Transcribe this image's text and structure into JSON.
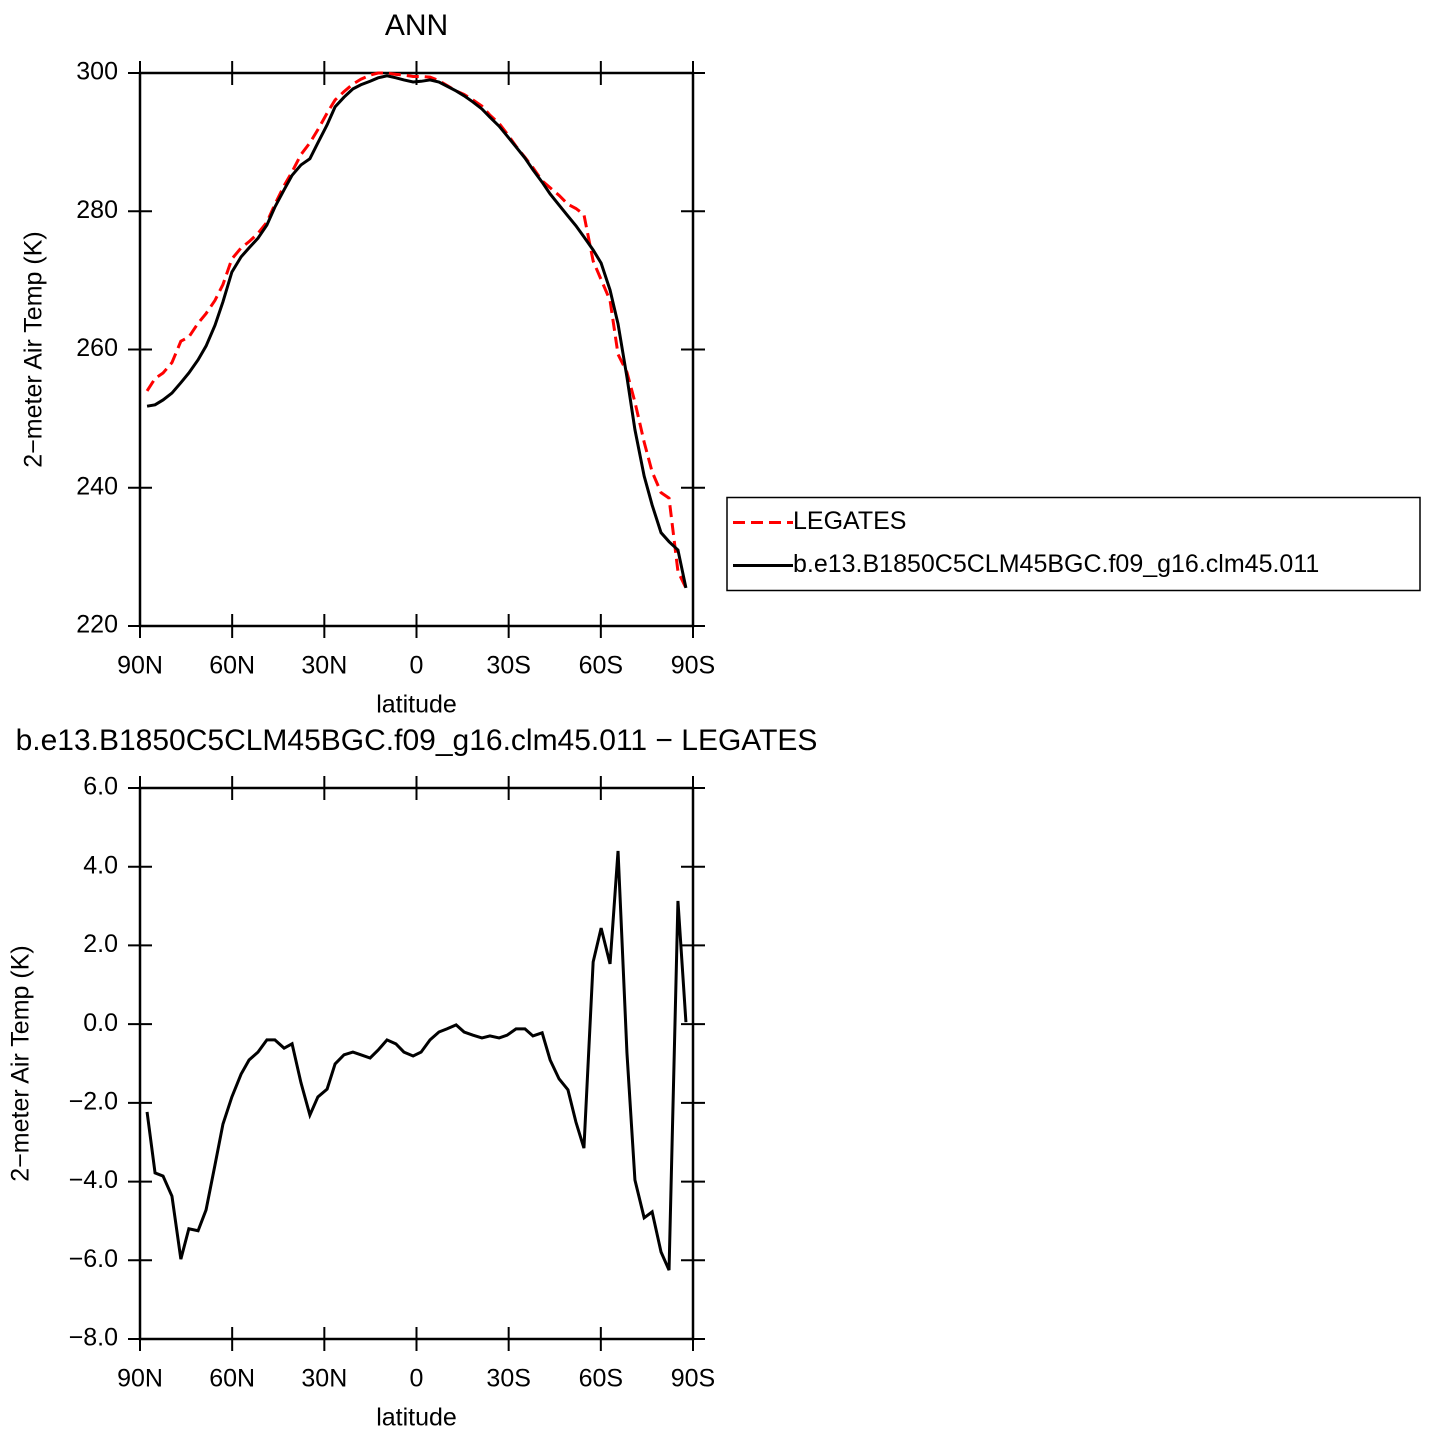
{
  "chart_data": [
    {
      "type": "line",
      "title": "ANN",
      "x_label": "latitude",
      "y_label": "2−meter Air Temp (K)",
      "x": [
        87.7,
        85.1,
        82.5,
        79.6,
        76.7,
        74.1,
        71.1,
        68.5,
        65.6,
        63.0,
        60.1,
        57.1,
        54.5,
        51.6,
        48.7,
        46.1,
        43.1,
        40.5,
        37.6,
        34.7,
        32.1,
        29.1,
        26.5,
        23.6,
        20.7,
        18.1,
        15.1,
        12.5,
        9.6,
        6.7,
        4.1,
        1.1,
        -1.5,
        -4.4,
        -7.3,
        -9.9,
        -12.9,
        -15.5,
        -18.4,
        -21.3,
        -23.9,
        -26.9,
        -29.5,
        -32.4,
        -35.3,
        -37.9,
        -40.9,
        -43.5,
        -46.4,
        -49.3,
        -51.9,
        -54.5,
        -57.5,
        -60.1,
        -63.0,
        -65.6,
        -68.5,
        -71.1,
        -74.1,
        -76.7,
        -79.6,
        -82.2,
        -85.1,
        -87.7
      ],
      "series": [
        {
          "name": "LEGATES",
          "color": "#ff0000",
          "dashed": true,
          "values": [
            254.0,
            255.8,
            256.6,
            258.1,
            261.2,
            261.8,
            263.8,
            265.2,
            267.1,
            269.4,
            273.1,
            274.7,
            275.6,
            276.8,
            278.4,
            281.0,
            283.7,
            285.7,
            288.2,
            289.9,
            291.8,
            294.2,
            296.1,
            297.3,
            298.4,
            299.1,
            299.7,
            300.0,
            300.0,
            299.8,
            299.7,
            299.5,
            299.5,
            299.4,
            298.9,
            298.2,
            297.4,
            296.9,
            296.1,
            295.2,
            293.9,
            292.7,
            291.2,
            289.4,
            287.8,
            286.3,
            284.4,
            283.4,
            282.3,
            281.0,
            280.4,
            279.5,
            272.8,
            270.1,
            267.1,
            259.3,
            256.7,
            252.4,
            246.6,
            242.3,
            239.3,
            238.5,
            227.9,
            225.5
          ]
        },
        {
          "name": "b.e13.B1850C5CLM45BGC.f09_g16.clm45.011",
          "color": "#000000",
          "dashed": false,
          "values": [
            251.8,
            252.0,
            252.7,
            253.7,
            255.2,
            256.6,
            258.5,
            260.5,
            263.5,
            266.9,
            271.2,
            273.4,
            274.7,
            276.1,
            278.0,
            280.6,
            283.1,
            285.2,
            286.7,
            287.6,
            289.9,
            292.5,
            295.1,
            296.5,
            297.7,
            298.3,
            298.8,
            299.3,
            299.6,
            299.3,
            299.0,
            298.7,
            298.8,
            299.0,
            298.7,
            298.1,
            297.4,
            296.7,
            295.8,
            294.8,
            293.6,
            292.3,
            290.9,
            289.3,
            287.7,
            286.0,
            284.2,
            282.5,
            280.9,
            279.3,
            277.9,
            276.3,
            274.4,
            272.5,
            268.6,
            263.7,
            256.0,
            248.4,
            241.7,
            237.5,
            233.5,
            232.2,
            231.0,
            225.5
          ]
        }
      ],
      "xlim": [
        90,
        -90
      ],
      "xticks": [
        {
          "value": 90,
          "label": "90N"
        },
        {
          "value": 60,
          "label": "60N"
        },
        {
          "value": 30,
          "label": "30N"
        },
        0,
        {
          "value": -30,
          "label": "30S"
        },
        {
          "value": -60,
          "label": "60S"
        },
        {
          "value": -90,
          "label": "90S"
        }
      ],
      "ylim": [
        220,
        300
      ],
      "yticks": [
        220,
        240,
        260,
        280,
        300
      ],
      "legend": "right"
    },
    {
      "type": "line",
      "title": "b.e13.B1850C5CLM45BGC.f09_g16.clm45.011 − LEGATES",
      "x_label": "latitude",
      "y_label": "2−meter Air Temp (K)",
      "x": [
        87.7,
        85.1,
        82.5,
        79.6,
        76.7,
        74.1,
        71.1,
        68.5,
        65.6,
        63.0,
        60.1,
        57.1,
        54.5,
        51.6,
        48.7,
        46.1,
        43.1,
        40.5,
        37.6,
        34.7,
        32.1,
        29.1,
        26.5,
        23.6,
        20.7,
        18.1,
        15.1,
        12.5,
        9.6,
        6.7,
        4.1,
        1.1,
        -1.5,
        -4.4,
        -7.3,
        -9.9,
        -12.9,
        -15.5,
        -18.4,
        -21.3,
        -23.9,
        -26.9,
        -29.5,
        -32.4,
        -35.3,
        -37.9,
        -40.9,
        -43.5,
        -46.4,
        -49.3,
        -51.9,
        -54.5,
        -57.5,
        -60.1,
        -63.0,
        -65.6,
        -68.5,
        -71.1,
        -74.1,
        -76.7,
        -79.6,
        -82.2,
        -85.1,
        -87.7
      ],
      "series": [
        {
          "color": "#000000",
          "dashed": false,
          "values": [
            -2.23,
            -3.78,
            -3.86,
            -4.37,
            -5.97,
            -5.2,
            -5.25,
            -4.72,
            -3.58,
            -2.54,
            -1.85,
            -1.27,
            -0.91,
            -0.71,
            -0.4,
            -0.4,
            -0.61,
            -0.5,
            -1.49,
            -2.31,
            -1.85,
            -1.65,
            -1.01,
            -0.78,
            -0.71,
            -0.78,
            -0.86,
            -0.66,
            -0.4,
            -0.5,
            -0.71,
            -0.81,
            -0.71,
            -0.4,
            -0.2,
            -0.12,
            -0.02,
            -0.2,
            -0.28,
            -0.35,
            -0.3,
            -0.35,
            -0.28,
            -0.12,
            -0.12,
            -0.3,
            -0.22,
            -0.91,
            -1.39,
            -1.67,
            -2.49,
            -3.15,
            1.58,
            2.44,
            1.53,
            4.4,
            -0.73,
            -3.96,
            -4.92,
            -4.77,
            -5.79,
            -6.25,
            3.13,
            0.05
          ]
        }
      ],
      "xlim": [
        90,
        -90
      ],
      "xticks": [
        {
          "value": 90,
          "label": "90N"
        },
        {
          "value": 60,
          "label": "60N"
        },
        {
          "value": 30,
          "label": "30N"
        },
        0,
        {
          "value": -30,
          "label": "30S"
        },
        {
          "value": -60,
          "label": "60S"
        },
        {
          "value": -90,
          "label": "90S"
        }
      ],
      "ylim": [
        -8,
        6
      ],
      "yticks": [
        {
          "value": -8,
          "label": "−8.0"
        },
        {
          "value": -6,
          "label": "−6.0"
        },
        {
          "value": -4,
          "label": "−4.0"
        },
        {
          "value": -2,
          "label": "−2.0"
        },
        {
          "value": 0,
          "label": "0.0"
        },
        {
          "value": 2,
          "label": "2.0"
        },
        {
          "value": 4,
          "label": "4.0"
        },
        {
          "value": 6,
          "label": "6.0"
        }
      ]
    }
  ]
}
